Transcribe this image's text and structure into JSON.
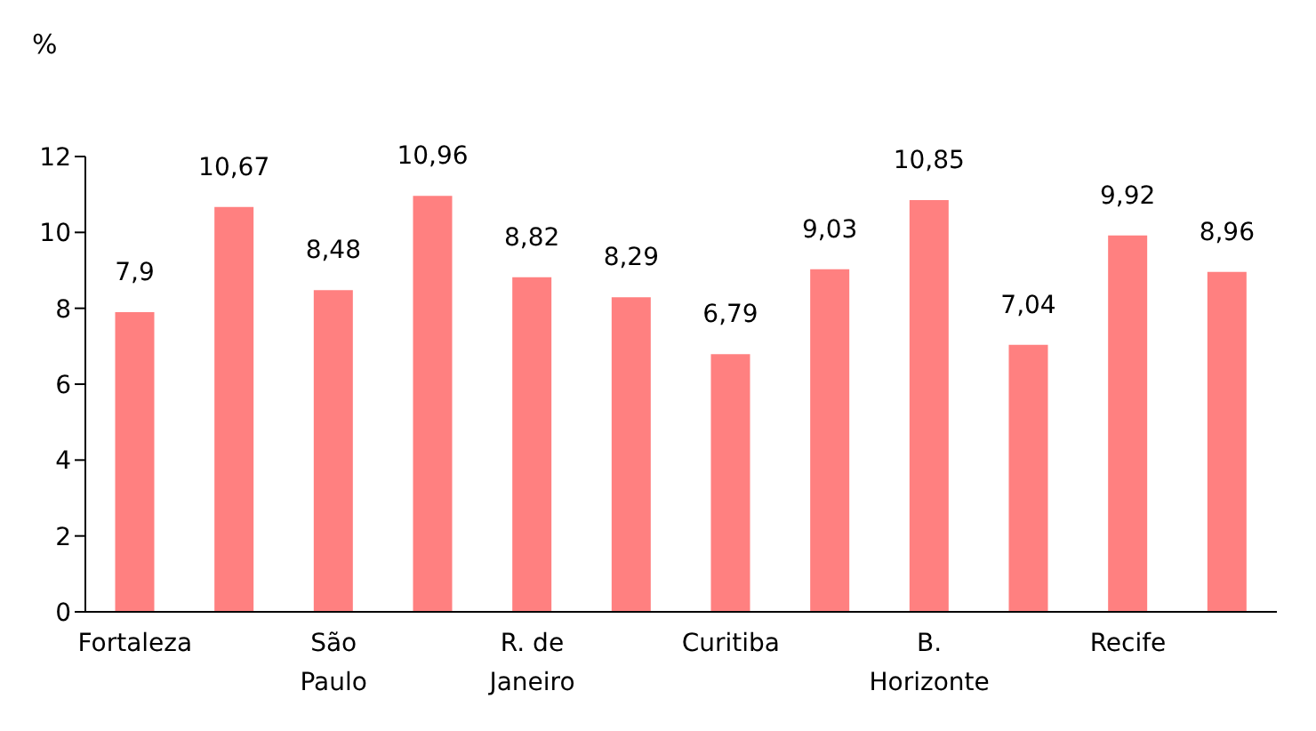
{
  "chart_data": {
    "type": "bar",
    "ylabel": "%",
    "categories": [
      "Fortaleza",
      null,
      "São Paulo",
      null,
      "R. de Janeiro",
      null,
      "Curitiba",
      null,
      "B. Horizonte",
      null,
      "Recife",
      null
    ],
    "values": [
      7.9,
      10.67,
      8.48,
      10.96,
      8.82,
      8.29,
      6.79,
      9.03,
      10.85,
      7.04,
      9.92,
      8.96
    ],
    "value_labels": [
      "7,9",
      "10,67",
      "8,48",
      "10,96",
      "8,82",
      "8,29",
      "6,79",
      "9,03",
      "10,85",
      "7,04",
      "9,92",
      "8,96"
    ],
    "color": "#ff8080",
    "ylim": [
      0,
      12
    ],
    "yticks": [
      0,
      2,
      4,
      6,
      8,
      10,
      12
    ],
    "grid": false,
    "legend": false
  }
}
